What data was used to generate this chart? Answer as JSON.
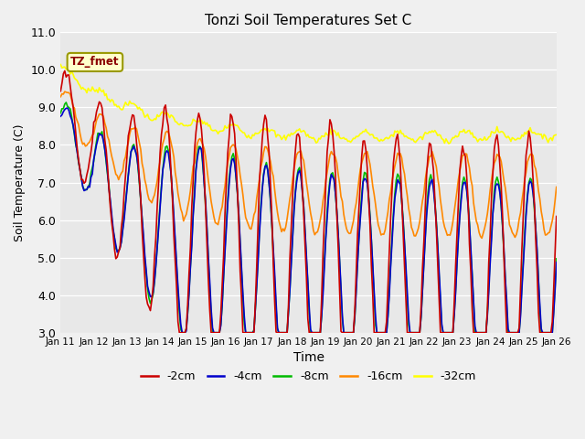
{
  "title": "Tonzi Soil Temperatures Set C",
  "xlabel": "Time",
  "ylabel": "Soil Temperature (C)",
  "ylim": [
    3.0,
    11.0
  ],
  "yticks": [
    3.0,
    4.0,
    5.0,
    6.0,
    7.0,
    8.0,
    9.0,
    10.0,
    11.0
  ],
  "xtick_labels": [
    "Jan 11",
    "Jan 12",
    "Jan 13",
    "Jan 14",
    "Jan 15",
    "Jan 16",
    "Jan 17",
    "Jan 18",
    "Jan 19",
    "Jan 20",
    "Jan 21",
    "Jan 22",
    "Jan 23",
    "Jan 24",
    "Jan 25",
    "Jan 26"
  ],
  "annotation": "TZ_fmet",
  "colors": {
    "-2cm": "#cc0000",
    "-4cm": "#0000cc",
    "-8cm": "#00bb00",
    "-16cm": "#ff8800",
    "-32cm": "#ffff00"
  },
  "legend_labels": [
    "-2cm",
    "-4cm",
    "-8cm",
    "-16cm",
    "-32cm"
  ],
  "fig_facecolor": "#f0f0f0",
  "ax_facecolor": "#e8e8e8",
  "n_points": 360
}
